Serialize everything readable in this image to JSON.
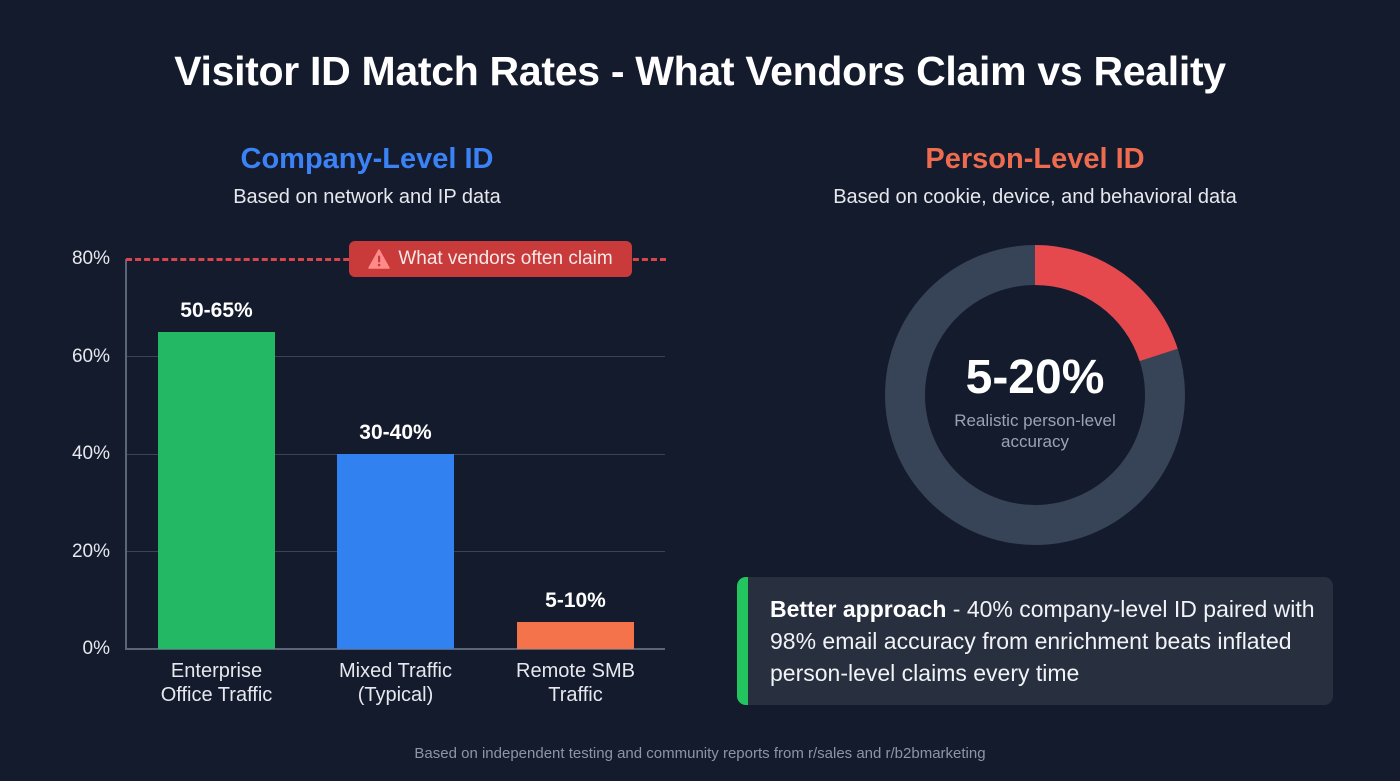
{
  "title": "Visitor ID Match Rates - What Vendors Claim vs Reality",
  "left_panel": {
    "title": "Company-Level ID",
    "subtitle": "Based on network and IP data",
    "title_color": "#3b82f6"
  },
  "right_panel": {
    "title": "Person-Level ID",
    "subtitle": "Based on cookie, device, and behavioral data",
    "title_color": "#ef6b4f"
  },
  "claim_badge": {
    "icon": "warning-triangle-icon",
    "label": "What vendors often claim",
    "color": "#c93a3a"
  },
  "callout": {
    "bold": "Better approach",
    "text": " - 40% company-level ID paired with 98% email accuracy from enrichment beats inflated person-level claims every time",
    "accent_color": "#22c55e"
  },
  "footnote": "Based on independent testing and community reports from r/sales and r/b2bmarketing",
  "chart_data": [
    {
      "type": "bar",
      "title": "Company-Level ID",
      "subtitle": "Based on network and IP data",
      "categories": [
        "Enterprise Office Traffic",
        "Mixed Traffic (Typical)",
        "Remote SMB Traffic"
      ],
      "category_lines": [
        [
          "Enterprise",
          "Office Traffic"
        ],
        [
          "Mixed Traffic",
          "(Typical)"
        ],
        [
          "Remote SMB",
          "Traffic"
        ]
      ],
      "values": [
        65,
        40,
        5.5
      ],
      "value_labels": [
        "50-65%",
        "30-40%",
        "5-10%"
      ],
      "colors": [
        "#22b864",
        "#3182f0",
        "#f5734a"
      ],
      "yticks": [
        "0%",
        "20%",
        "40%",
        "60%",
        "80%"
      ],
      "ylim": [
        0,
        80
      ],
      "grid": true,
      "reference_line": {
        "value": 80,
        "label": "What vendors often claim",
        "style": "dashed",
        "color": "#d9454a"
      },
      "xlabel": "",
      "ylabel": ""
    },
    {
      "type": "pie",
      "variant": "donut",
      "title": "Person-Level ID",
      "subtitle": "Based on cookie, device, and behavioral data",
      "slices": [
        {
          "label": "Realistic person-level accuracy",
          "value": 20,
          "color": "#e5484d"
        },
        {
          "label": "Remainder",
          "value": 80,
          "color": "#374357"
        }
      ],
      "center_value": "5-20%",
      "center_caption": "Realistic person-level accuracy"
    }
  ]
}
